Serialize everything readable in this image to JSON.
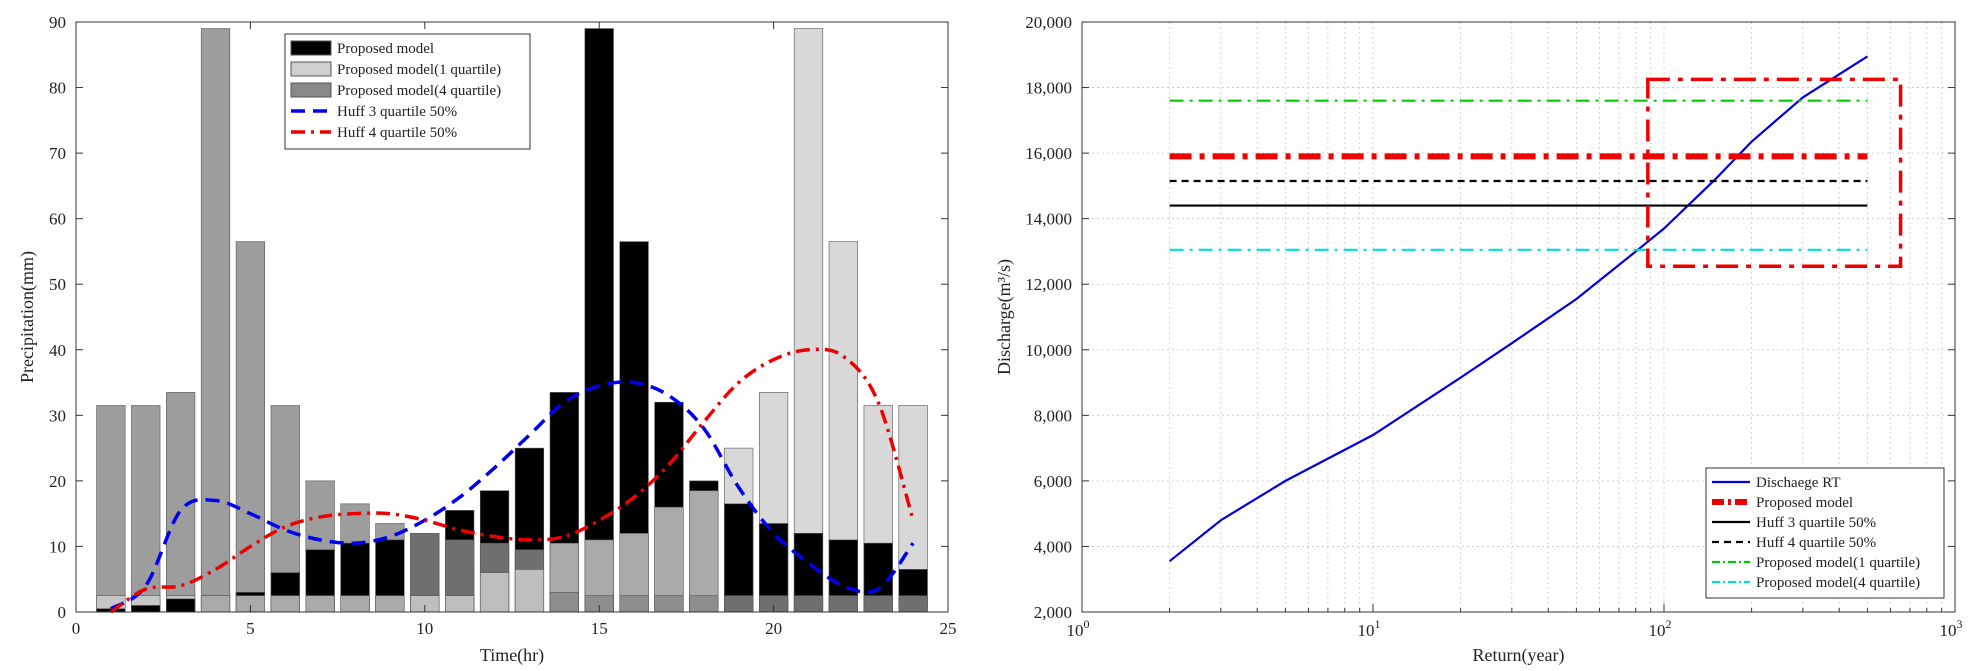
{
  "chart_data": [
    {
      "type": "bar",
      "xlabel": "Time(hr)",
      "ylabel": "Precipitation(mm)",
      "xlim": [
        0,
        25
      ],
      "ylim": [
        0,
        90
      ],
      "xticks": [
        0,
        5,
        10,
        15,
        20,
        25
      ],
      "yticks": [
        0,
        10,
        20,
        30,
        40,
        50,
        60,
        70,
        80,
        90
      ],
      "grid": false,
      "legend_position": "top-center",
      "x": [
        1,
        2,
        3,
        4,
        5,
        6,
        7,
        8,
        9,
        10,
        11,
        12,
        13,
        14,
        15,
        16,
        17,
        18,
        19,
        20,
        21,
        22,
        23,
        24
      ],
      "series": [
        {
          "name": "Proposed model",
          "kind": "bar",
          "color": "#000000",
          "values": [
            0.5,
            1,
            2,
            2.5,
            3,
            6,
            9.5,
            10.5,
            11,
            12,
            15.5,
            18.5,
            25,
            33.5,
            89,
            56.5,
            32,
            20,
            16.5,
            13.5,
            12,
            11,
            10.5,
            6.5
          ]
        },
        {
          "name": "Proposed model(1 quartile)",
          "kind": "bar",
          "color": "#d0d0d0",
          "values": [
            2.5,
            2.5,
            2.5,
            2.5,
            2.5,
            2.5,
            2.5,
            2.5,
            2.5,
            2.5,
            2.5,
            6,
            6.5,
            10.5,
            11,
            12,
            16,
            18.5,
            25,
            33.5,
            89,
            56.5,
            31.5,
            31.5
          ]
        },
        {
          "name": "Proposed model(4 quartile)",
          "kind": "bar",
          "color": "#888888",
          "values": [
            31.5,
            31.5,
            33.5,
            89,
            56.5,
            31.5,
            20,
            16.5,
            13.5,
            12,
            11,
            10.5,
            9.5,
            3,
            2.5,
            2.5,
            2.5,
            2.5,
            2.5,
            2.5,
            2.5,
            2.5,
            2.5,
            2.5
          ]
        },
        {
          "name": "Huff 3 quartile 50%",
          "kind": "line",
          "color": "#0000ee",
          "dash": "dashed",
          "values": [
            0.5,
            4,
            15.5,
            17,
            15,
            12.5,
            11,
            10.5,
            11.5,
            14,
            17.5,
            22,
            27,
            32,
            34.5,
            35,
            33,
            28,
            19,
            12,
            7.5,
            4,
            3.5,
            10.5
          ]
        },
        {
          "name": "Huff 4 quartile 50%",
          "kind": "line",
          "color": "#ee0000",
          "dash": "dashdot",
          "values": [
            0,
            3.5,
            4,
            6.5,
            10,
            13,
            14.5,
            15,
            15,
            14,
            12.5,
            11.5,
            11,
            11.5,
            14,
            17.5,
            22.5,
            29,
            35,
            38.5,
            40,
            39,
            32,
            14
          ]
        }
      ]
    },
    {
      "type": "line",
      "xlabel": "Return(year)",
      "ylabel": "Discharge(m³/s)",
      "xscale": "log",
      "xlim": [
        1,
        1000
      ],
      "ylim": [
        2000,
        20000
      ],
      "xtick_labels": [
        {
          "value": 1,
          "base": "10",
          "exp": "0"
        },
        {
          "value": 10,
          "base": "10",
          "exp": "1"
        },
        {
          "value": 100,
          "base": "10",
          "exp": "2"
        },
        {
          "value": 1000,
          "base": "10",
          "exp": "3"
        }
      ],
      "ytick_labels": [
        "2,000",
        "4,000",
        "6,000",
        "8,000",
        "10,000",
        "12,000",
        "14,000",
        "16,000",
        "18,000",
        "20,000"
      ],
      "yticks": [
        2000,
        4000,
        6000,
        8000,
        10000,
        12000,
        14000,
        16000,
        18000,
        20000
      ],
      "grid": true,
      "legend_position": "bottom-right",
      "series": [
        {
          "name": "Dischaege RT",
          "color": "#0000dd",
          "dash": "solid",
          "x": [
            2,
            3,
            5,
            10,
            20,
            30,
            50,
            80,
            100,
            150,
            200,
            300,
            500
          ],
          "y": [
            3550,
            4800,
            6000,
            7400,
            9150,
            10200,
            11550,
            13000,
            13700,
            15200,
            16350,
            17700,
            18950
          ]
        },
        {
          "name": "Proposed model",
          "color": "#ee0000",
          "dash": "thick-dashdot",
          "x": [
            2,
            500
          ],
          "y": [
            15900,
            15900
          ]
        },
        {
          "name": "Huff 3 quartile 50%",
          "color": "#000000",
          "dash": "solid",
          "x": [
            2,
            500
          ],
          "y": [
            14400,
            14400
          ]
        },
        {
          "name": "Huff 4 quartile 50%",
          "color": "#000000",
          "dash": "dashed",
          "x": [
            2,
            500
          ],
          "y": [
            15150,
            15150
          ]
        },
        {
          "name": "Proposed model(1 quartile)",
          "color": "#00cc00",
          "dash": "dashdot",
          "x": [
            2,
            500
          ],
          "y": [
            17600,
            17600
          ]
        },
        {
          "name": "Proposed model(4 quartile)",
          "color": "#00dddd",
          "dash": "dashdot",
          "x": [
            2,
            500
          ],
          "y": [
            13050,
            13050
          ]
        }
      ],
      "annotation_box": {
        "x": [
          88,
          650
        ],
        "y": [
          12550,
          18250
        ],
        "color": "#ee0000",
        "dash": "dashdot"
      }
    }
  ]
}
